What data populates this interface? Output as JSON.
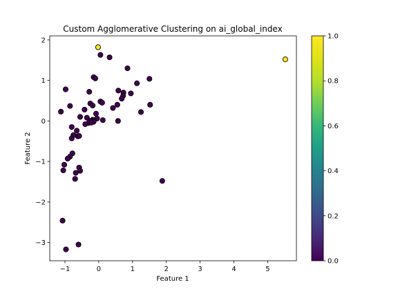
{
  "chart_data": {
    "type": "scatter",
    "title": "Custom Agglomerative Clustering on ai_global_index",
    "xlabel": "Feature 1",
    "ylabel": "Feature 2",
    "xlim": [
      -1.45,
      5.85
    ],
    "ylim": [
      -3.45,
      2.1
    ],
    "xticks": [
      -1,
      0,
      1,
      2,
      3,
      4,
      5
    ],
    "yticks": [
      -3,
      -2,
      -1,
      0,
      1,
      2
    ],
    "grid": false,
    "colorbar": {
      "range": [
        0.0,
        1.0
      ],
      "ticks": [
        "0.0",
        "0.2",
        "0.4",
        "0.6",
        "0.8",
        "1.0"
      ],
      "colormap": "viridis"
    },
    "colors": {
      "cluster_0": "#440154",
      "cluster_1": "#fde725",
      "edge": "#000000"
    },
    "points": [
      {
        "x": -0.02,
        "y": 1.82,
        "c": 1
      },
      {
        "x": 5.52,
        "y": 1.52,
        "c": 1
      },
      {
        "x": 0.05,
        "y": 1.63,
        "c": 0
      },
      {
        "x": 0.32,
        "y": 1.57,
        "c": 0
      },
      {
        "x": 0.85,
        "y": 1.3,
        "c": 0
      },
      {
        "x": -0.15,
        "y": 1.08,
        "c": 0
      },
      {
        "x": -0.1,
        "y": 1.05,
        "c": 0
      },
      {
        "x": 1.5,
        "y": 1.04,
        "c": 0
      },
      {
        "x": 1.13,
        "y": 0.93,
        "c": 0
      },
      {
        "x": -0.98,
        "y": 0.78,
        "c": 0
      },
      {
        "x": -0.28,
        "y": 0.72,
        "c": 0
      },
      {
        "x": 0.58,
        "y": 0.75,
        "c": 0
      },
      {
        "x": 0.73,
        "y": 0.7,
        "c": 0
      },
      {
        "x": 0.72,
        "y": 0.62,
        "c": 0
      },
      {
        "x": 0.95,
        "y": 0.68,
        "c": 0
      },
      {
        "x": 0.68,
        "y": 0.55,
        "c": 0
      },
      {
        "x": 0.05,
        "y": 0.48,
        "c": 0
      },
      {
        "x": 0.1,
        "y": 0.45,
        "c": 0
      },
      {
        "x": -0.25,
        "y": 0.43,
        "c": 0
      },
      {
        "x": -0.18,
        "y": 0.38,
        "c": 0
      },
      {
        "x": -0.85,
        "y": 0.37,
        "c": 0
      },
      {
        "x": 0.55,
        "y": 0.4,
        "c": 0
      },
      {
        "x": 1.52,
        "y": 0.4,
        "c": 0
      },
      {
        "x": 0.42,
        "y": 0.32,
        "c": 0
      },
      {
        "x": -0.42,
        "y": 0.28,
        "c": 0
      },
      {
        "x": -1.12,
        "y": 0.23,
        "c": 0
      },
      {
        "x": 1.25,
        "y": 0.22,
        "c": 0
      },
      {
        "x": -0.08,
        "y": 0.18,
        "c": 0
      },
      {
        "x": -0.55,
        "y": 0.1,
        "c": 0
      },
      {
        "x": -0.35,
        "y": 0.08,
        "c": 0
      },
      {
        "x": -0.05,
        "y": 0.06,
        "c": 0
      },
      {
        "x": -0.18,
        "y": 0.03,
        "c": 0
      },
      {
        "x": 0.12,
        "y": 0.02,
        "c": 0
      },
      {
        "x": 0.57,
        "y": 0.0,
        "c": 0
      },
      {
        "x": -0.25,
        "y": 0.0,
        "c": 0
      },
      {
        "x": -0.15,
        "y": -0.02,
        "c": 0
      },
      {
        "x": -0.3,
        "y": -0.05,
        "c": 0
      },
      {
        "x": -0.22,
        "y": -0.04,
        "c": 0
      },
      {
        "x": -0.4,
        "y": -0.08,
        "c": 0
      },
      {
        "x": -0.8,
        "y": -0.15,
        "c": 0
      },
      {
        "x": -0.65,
        "y": -0.24,
        "c": 0
      },
      {
        "x": -0.75,
        "y": -0.35,
        "c": 0
      },
      {
        "x": -0.62,
        "y": -0.38,
        "c": 0
      },
      {
        "x": -0.58,
        "y": -0.37,
        "c": 0
      },
      {
        "x": -0.8,
        "y": -0.43,
        "c": 0
      },
      {
        "x": -0.78,
        "y": -0.8,
        "c": 0
      },
      {
        "x": -0.85,
        "y": -0.88,
        "c": 0
      },
      {
        "x": -0.92,
        "y": -0.93,
        "c": 0
      },
      {
        "x": -1.02,
        "y": -1.08,
        "c": 0
      },
      {
        "x": -0.58,
        "y": -1.15,
        "c": 0
      },
      {
        "x": -1.05,
        "y": -1.22,
        "c": 0
      },
      {
        "x": -0.55,
        "y": -1.23,
        "c": 0
      },
      {
        "x": -0.68,
        "y": -1.28,
        "c": 0
      },
      {
        "x": -0.7,
        "y": -1.43,
        "c": 0
      },
      {
        "x": 1.88,
        "y": -1.48,
        "c": 0
      },
      {
        "x": -1.07,
        "y": -2.46,
        "c": 0
      },
      {
        "x": -0.6,
        "y": -3.05,
        "c": 0
      },
      {
        "x": -0.97,
        "y": -3.17,
        "c": 0
      }
    ]
  }
}
